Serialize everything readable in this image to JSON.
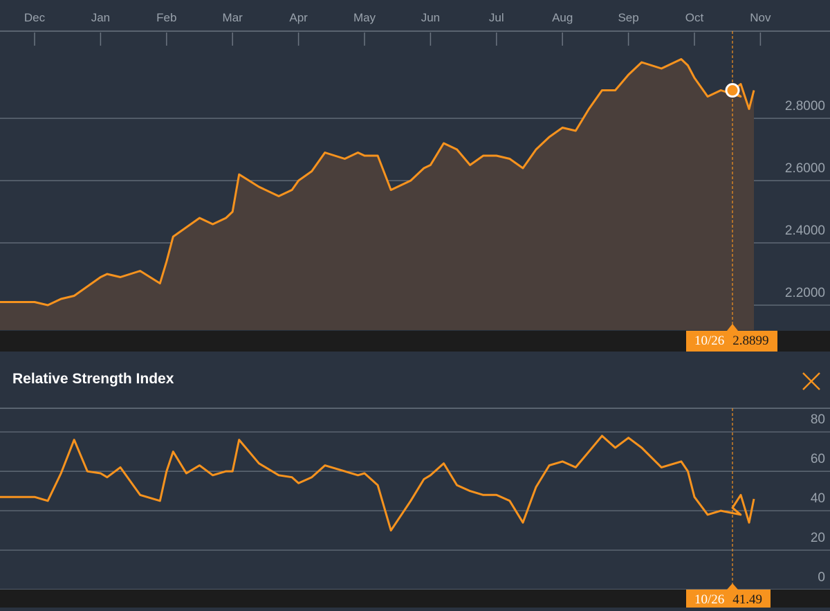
{
  "colors": {
    "background": "#2a3340",
    "accent": "#f7931e",
    "grid": "#6b7480",
    "strip": "#1c1c1c",
    "label": "#9aa3ad"
  },
  "price_readout": {
    "date": "10/26",
    "value": "2.8899"
  },
  "rsi_readout": {
    "date": "10/26",
    "value": "41.49"
  },
  "rsi_panel": {
    "title": "Relative Strength Index",
    "close_icon": "close-icon"
  },
  "chart_data": [
    {
      "type": "area",
      "x_ticks": [
        "Dec",
        "Jan",
        "Feb",
        "Mar",
        "Apr",
        "May",
        "Jun",
        "Jul",
        "Aug",
        "Sep",
        "Oct",
        "Nov"
      ],
      "y_ticks": [
        "2.2000",
        "2.4000",
        "2.6000",
        "2.8000"
      ],
      "ylim": [
        2.12,
        3.08
      ],
      "grid": true,
      "crosshair": {
        "date": "10/26",
        "value": 2.8899
      },
      "series": [
        {
          "points": [
            [
              "Dec",
              2.21
            ],
            [
              0.2,
              2.2
            ],
            [
              0.4,
              2.22
            ],
            [
              0.6,
              2.23
            ],
            [
              0.8,
              2.26
            ],
            [
              "Jan",
              2.29
            ],
            [
              0.1,
              2.3
            ],
            [
              0.3,
              2.29
            ],
            [
              0.6,
              2.31
            ],
            [
              0.9,
              2.27
            ],
            [
              "Feb",
              2.34
            ],
            [
              0.1,
              2.42
            ],
            [
              0.3,
              2.45
            ],
            [
              0.5,
              2.48
            ],
            [
              0.7,
              2.46
            ],
            [
              0.9,
              2.48
            ],
            [
              "Mar",
              2.5
            ],
            [
              0.1,
              2.62
            ],
            [
              0.4,
              2.58
            ],
            [
              0.7,
              2.55
            ],
            [
              0.9,
              2.57
            ],
            [
              "Apr",
              2.6
            ],
            [
              0.2,
              2.63
            ],
            [
              0.4,
              2.69
            ],
            [
              0.7,
              2.67
            ],
            [
              0.9,
              2.69
            ],
            [
              "May",
              2.68
            ],
            [
              0.2,
              2.68
            ],
            [
              0.4,
              2.57
            ],
            [
              0.7,
              2.6
            ],
            [
              0.9,
              2.64
            ],
            [
              "Jun",
              2.65
            ],
            [
              0.2,
              2.72
            ],
            [
              0.4,
              2.7
            ],
            [
              0.6,
              2.65
            ],
            [
              0.8,
              2.68
            ],
            [
              "Jul",
              2.68
            ],
            [
              0.2,
              2.67
            ],
            [
              0.4,
              2.64
            ],
            [
              0.6,
              2.7
            ],
            [
              0.8,
              2.74
            ],
            [
              "Aug",
              2.77
            ],
            [
              0.2,
              2.76
            ],
            [
              0.4,
              2.83
            ],
            [
              0.6,
              2.89
            ],
            [
              0.8,
              2.89
            ],
            [
              "Sep",
              2.94
            ],
            [
              0.2,
              2.98
            ],
            [
              0.5,
              2.96
            ],
            [
              0.8,
              2.99
            ],
            [
              0.9,
              2.97
            ],
            [
              "Oct",
              2.93
            ],
            [
              0.2,
              2.87
            ],
            [
              0.4,
              2.89
            ],
            [
              0.7,
              2.87
            ],
            [
              "10/26",
              2.8899
            ],
            [
              0.1,
              2.91
            ],
            [
              0.2,
              2.83
            ],
            [
              0.3,
              2.89
            ]
          ]
        }
      ]
    },
    {
      "type": "line",
      "title": "Relative Strength Index",
      "y_ticks": [
        "0",
        "20",
        "40",
        "60",
        "80"
      ],
      "ylim": [
        0,
        92
      ],
      "grid": true,
      "crosshair": {
        "date": "10/26",
        "value": 41.49
      },
      "series": [
        {
          "points": [
            [
              "Dec",
              47
            ],
            [
              0.2,
              45
            ],
            [
              0.4,
              59
            ],
            [
              0.6,
              76
            ],
            [
              0.8,
              60
            ],
            [
              "Jan",
              59
            ],
            [
              0.1,
              57
            ],
            [
              0.3,
              62
            ],
            [
              0.6,
              48
            ],
            [
              0.9,
              45
            ],
            [
              "Feb",
              60
            ],
            [
              0.1,
              70
            ],
            [
              0.3,
              59
            ],
            [
              0.5,
              63
            ],
            [
              0.7,
              58
            ],
            [
              0.9,
              60
            ],
            [
              "Mar",
              60
            ],
            [
              0.1,
              76
            ],
            [
              0.4,
              64
            ],
            [
              0.7,
              58
            ],
            [
              0.9,
              57
            ],
            [
              "Apr",
              54
            ],
            [
              0.2,
              57
            ],
            [
              0.4,
              63
            ],
            [
              0.7,
              60
            ],
            [
              0.9,
              58
            ],
            [
              "May",
              59
            ],
            [
              0.2,
              53
            ],
            [
              0.4,
              30
            ],
            [
              0.7,
              45
            ],
            [
              0.9,
              56
            ],
            [
              "Jun",
              58
            ],
            [
              0.2,
              64
            ],
            [
              0.4,
              53
            ],
            [
              0.6,
              50
            ],
            [
              0.8,
              48
            ],
            [
              "Jul",
              48
            ],
            [
              0.2,
              45
            ],
            [
              0.4,
              34
            ],
            [
              0.6,
              52
            ],
            [
              0.8,
              63
            ],
            [
              "Aug",
              65
            ],
            [
              0.2,
              62
            ],
            [
              0.4,
              70
            ],
            [
              0.6,
              78
            ],
            [
              0.8,
              72
            ],
            [
              "Sep",
              77
            ],
            [
              0.2,
              72
            ],
            [
              0.5,
              62
            ],
            [
              0.8,
              65
            ],
            [
              0.9,
              60
            ],
            [
              "Oct",
              47
            ],
            [
              0.2,
              38
            ],
            [
              0.4,
              40
            ],
            [
              0.7,
              38
            ],
            [
              "10/26",
              41.49
            ],
            [
              0.1,
              48
            ],
            [
              0.2,
              34
            ],
            [
              0.3,
              46
            ]
          ]
        }
      ]
    }
  ]
}
